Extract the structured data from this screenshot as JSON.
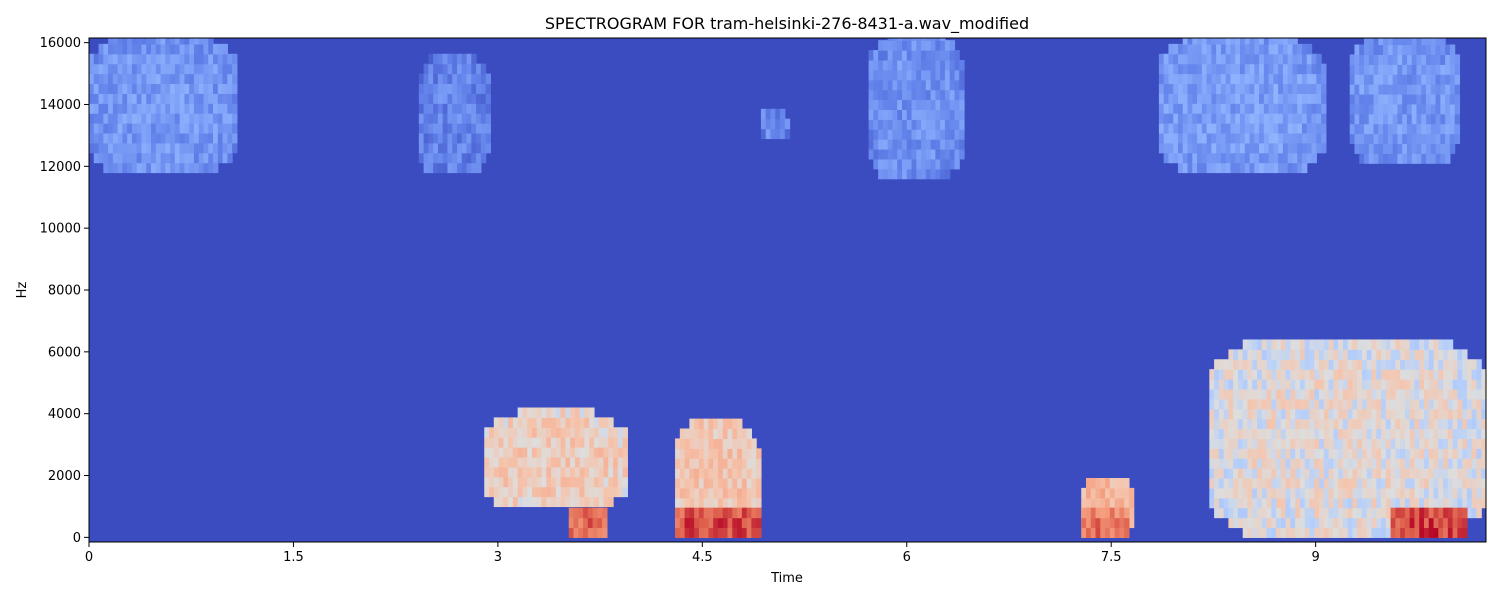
{
  "chart_data": {
    "type": "heatmap",
    "title": "SPECTROGRAM FOR tram-helsinki-276-8431-a.wav_modified",
    "xlabel": "Time",
    "ylabel": "Hz",
    "xlim": [
      0,
      10.25
    ],
    "ylim": [
      -150,
      16150
    ],
    "xticks": [
      0,
      1.5,
      3,
      4.5,
      6,
      7.5,
      9
    ],
    "xtick_labels": [
      "0",
      "1.5",
      "3",
      "4.5",
      "6",
      "7.5",
      "9"
    ],
    "yticks": [
      0,
      2000,
      4000,
      6000,
      8000,
      10000,
      12000,
      14000,
      16000
    ],
    "ytick_labels": [
      "0",
      "2000",
      "4000",
      "6000",
      "8000",
      "10000",
      "12000",
      "14000",
      "16000"
    ],
    "colormap": "coolwarm",
    "background_color": "#3b4cc0",
    "regions": [
      {
        "name": "hf-0",
        "t": [
          0,
          1.07
        ],
        "f": [
          11800,
          16150
        ],
        "level": 0.22
      },
      {
        "name": "hf-1",
        "t": [
          2.42,
          2.93
        ],
        "f": [
          11800,
          15500
        ],
        "level": 0.16
      },
      {
        "name": "hf-2",
        "t": [
          4.93,
          5.12
        ],
        "f": [
          12900,
          13800
        ],
        "level": 0.18
      },
      {
        "name": "hf-3",
        "t": [
          5.72,
          6.4
        ],
        "f": [
          11600,
          16150
        ],
        "level": 0.2
      },
      {
        "name": "hf-4",
        "t": [
          7.85,
          9.05
        ],
        "f": [
          11800,
          16150
        ],
        "level": 0.24
      },
      {
        "name": "hf-5",
        "t": [
          9.25,
          10.05
        ],
        "f": [
          12100,
          16150
        ],
        "level": 0.22
      },
      {
        "name": "low-3s",
        "t": [
          2.9,
          3.93
        ],
        "f": [
          1000,
          3900
        ],
        "level": 0.58
      },
      {
        "name": "low-4.5s",
        "t": [
          4.3,
          4.9
        ],
        "f": [
          0,
          3600
        ],
        "level": 0.6
      },
      {
        "name": "low-7.5s",
        "t": [
          7.28,
          7.65
        ],
        "f": [
          0,
          1900
        ],
        "level": 0.66
      },
      {
        "name": "sweep-9s",
        "t": [
          8.22,
          10.25
        ],
        "f": [
          0,
          6400
        ],
        "level": 0.52
      },
      {
        "name": "hot-3.7s",
        "t": [
          3.52,
          3.8
        ],
        "f": [
          0,
          900
        ],
        "level": 0.86
      },
      {
        "name": "hot-4.5s",
        "t": [
          4.3,
          4.92
        ],
        "f": [
          0,
          900
        ],
        "level": 0.9
      },
      {
        "name": "hot-7.5s",
        "t": [
          7.28,
          7.63
        ],
        "f": [
          0,
          700
        ],
        "level": 0.84
      },
      {
        "name": "hot-9.9s",
        "t": [
          9.55,
          10.1
        ],
        "f": [
          0,
          900
        ],
        "level": 0.92
      }
    ]
  }
}
